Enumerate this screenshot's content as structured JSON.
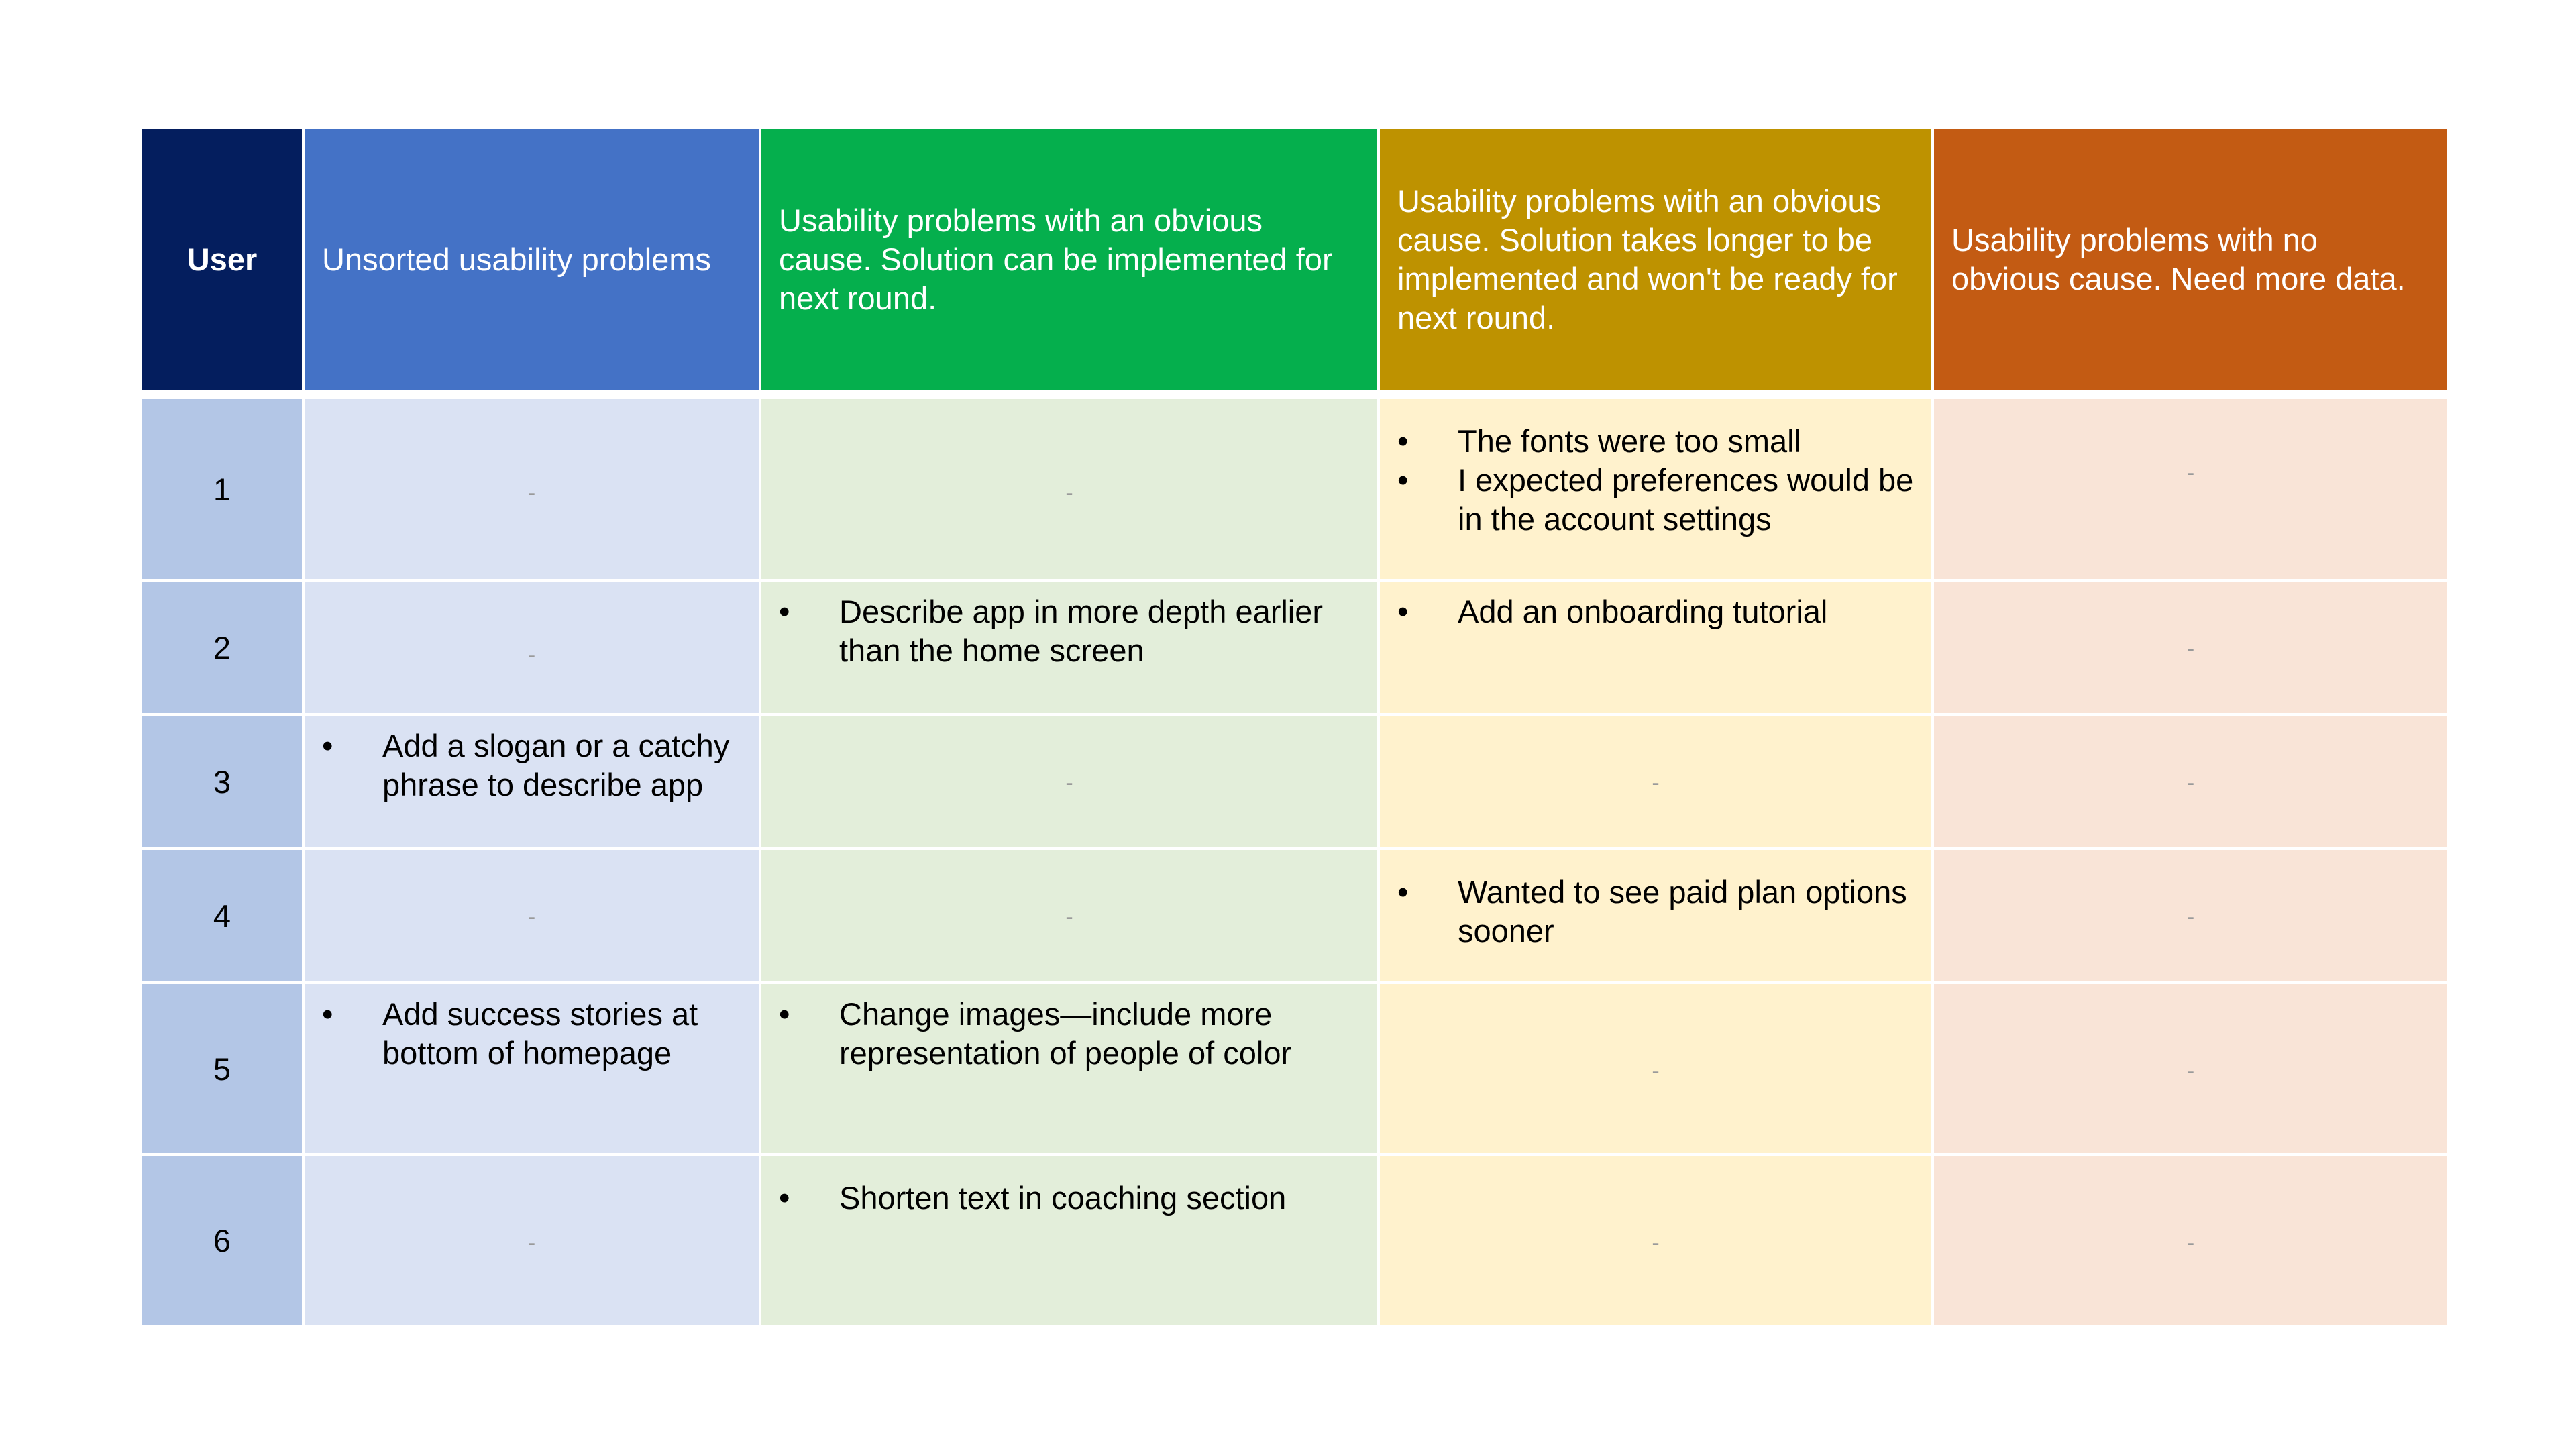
{
  "table": {
    "headers": {
      "user": "User",
      "col1": "Unsorted usability problems",
      "col2": "Usability problems with an obvious cause. Solution can be implemented for next round.",
      "col3": "Usability problems with an obvious cause. Solution takes longer to be implemented and won't be ready for next round.",
      "col4": "Usability problems with no obvious cause. Need more data."
    },
    "empty_marker": "-",
    "bullet_glyph": "•",
    "rows": [
      {
        "user": "1",
        "col1": [],
        "col2": [],
        "col3": [
          "The fonts were too small",
          "I expected preferences would be in the account settings"
        ],
        "col4": []
      },
      {
        "user": "2",
        "col1": [],
        "col2": [
          "Describe app in more depth earlier than the home screen"
        ],
        "col3": [
          "Add an onboarding tutorial"
        ],
        "col4": []
      },
      {
        "user": "3",
        "col1": [
          "Add a slogan or a catchy phrase to describe app"
        ],
        "col2": [],
        "col3": [],
        "col4": []
      },
      {
        "user": "4",
        "col1": [],
        "col2": [],
        "col3": [
          "Wanted to see paid plan options sooner"
        ],
        "col4": []
      },
      {
        "user": "5",
        "col1": [
          "Add success stories at bottom of homepage"
        ],
        "col2": [
          "Change images—include more representation of people of color"
        ],
        "col3": [],
        "col4": []
      },
      {
        "user": "6",
        "col1": [],
        "col2": [
          " Shorten text in coaching section"
        ],
        "col3": [],
        "col4": []
      }
    ]
  },
  "colors": {
    "header_user": "#041E5E",
    "header_unsorted": "#4472C6",
    "header_obvious_next_round": "#05AF4D",
    "header_obvious_longer": "#BE9200",
    "header_no_obvious_cause": "#C35B13",
    "body_user": "#B3C6E6",
    "body_unsorted": "#DAE2F3",
    "body_obvious_next_round": "#E3EEDA",
    "body_obvious_longer": "#FFF2CD",
    "body_no_obvious_cause": "#F9E4D7"
  }
}
